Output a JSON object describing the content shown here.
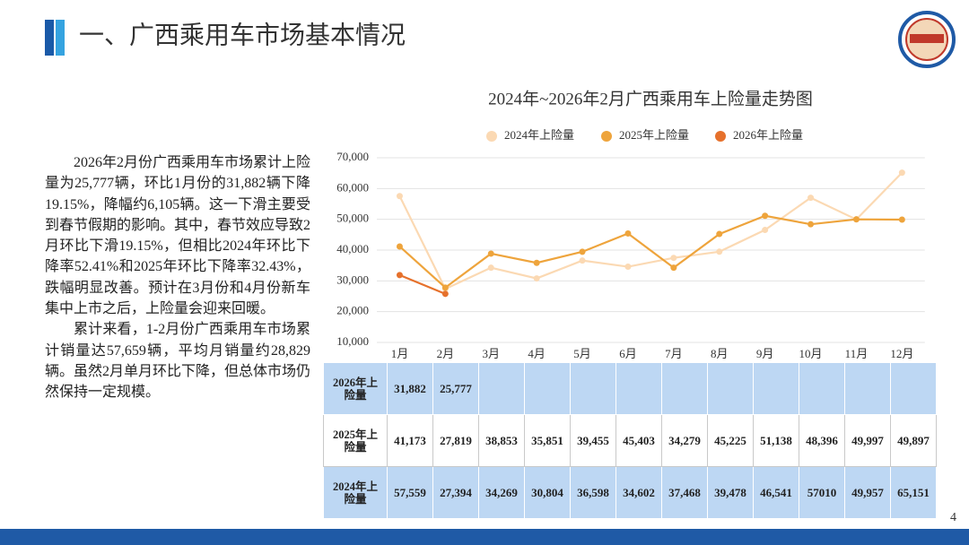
{
  "header": {
    "title": "一、广西乘用车市场基本情况",
    "page_number": "4"
  },
  "paragraphs": [
    "2026年2月份广西乘用车市场累计上险量为25,777辆，环比1月份的31,882辆下降19.15%，降幅约6,105辆。这一下滑主要受到春节假期的影响。其中，春节效应导致2月环比下滑19.15%，但相比2024年环比下降率52.41%和2025年环比下降率32.43%，跌幅明显改善。预计在3月份和4月份新车集中上市之后，上险量会迎来回暖。",
    "累计来看，1-2月份广西乘用车市场累计销量达57,659辆，平均月销量约28,829辆。虽然2月单月环比下降，但总体市场仍然保持一定规模。"
  ],
  "chart_data": {
    "type": "line",
    "title": "2024年~2026年2月广西乘用车上险量走势图",
    "categories": [
      "1月",
      "2月",
      "3月",
      "4月",
      "5月",
      "6月",
      "7月",
      "8月",
      "9月",
      "10月",
      "11月",
      "12月"
    ],
    "series": [
      {
        "name": "2024年上险量",
        "color": "#fbd9b3",
        "values": [
          57559,
          27394,
          34269,
          30804,
          36598,
          34602,
          37468,
          39478,
          46541,
          57010,
          49957,
          65151
        ],
        "value_labels": [
          "57,559",
          "27,394",
          "34,269",
          "30,804",
          "36,598",
          "34,602",
          "37,468",
          "39,478",
          "46,541",
          "57010",
          "49,957",
          "65,151"
        ]
      },
      {
        "name": "2025年上险量",
        "color": "#eea43c",
        "values": [
          41173,
          27819,
          38853,
          35851,
          39455,
          45403,
          34279,
          45225,
          51138,
          48396,
          49997,
          49897
        ],
        "value_labels": [
          "41,173",
          "27,819",
          "38,853",
          "35,851",
          "39,455",
          "45,403",
          "34,279",
          "45,225",
          "51,138",
          "48,396",
          "49,997",
          "49,897"
        ]
      },
      {
        "name": "2026年上险量",
        "color": "#e6712c",
        "values": [
          31882,
          25777,
          null,
          null,
          null,
          null,
          null,
          null,
          null,
          null,
          null,
          null
        ],
        "value_labels": [
          "31,882",
          "25,777",
          null,
          null,
          null,
          null,
          null,
          null,
          null,
          null,
          null,
          null
        ]
      }
    ],
    "ylim": [
      10000,
      70000
    ],
    "yticks": [
      {
        "value": 10000,
        "label": "10,000"
      },
      {
        "value": 20000,
        "label": "20,000"
      },
      {
        "value": 30000,
        "label": "30,000"
      },
      {
        "value": 40000,
        "label": "40,000"
      },
      {
        "value": 50000,
        "label": "50,000"
      },
      {
        "value": 60000,
        "label": "60,000"
      },
      {
        "value": 70000,
        "label": "70,000"
      }
    ],
    "grid": true,
    "legend": "top"
  }
}
